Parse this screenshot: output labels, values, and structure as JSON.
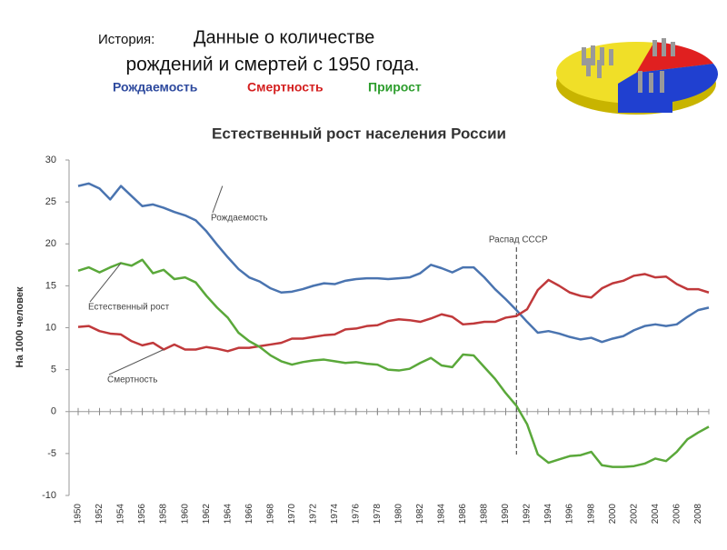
{
  "header": {
    "prefix": "История:",
    "title_line1": "Данные о количестве",
    "title_line2": "рождений и смертей с 1950 года.",
    "legend": [
      {
        "text": "Рождаемость",
        "color": "#2e4a9e"
      },
      {
        "text": "Смертность",
        "color": "#d42020"
      },
      {
        "text": "Прирост",
        "color": "#2e9e2e"
      }
    ]
  },
  "chart_data": {
    "type": "line",
    "title": "Естественный рост населения России",
    "ylabel": "На 1000 человек",
    "x": [
      1950,
      1951,
      1952,
      1953,
      1954,
      1955,
      1956,
      1957,
      1958,
      1959,
      1960,
      1961,
      1962,
      1963,
      1964,
      1965,
      1966,
      1967,
      1968,
      1969,
      1970,
      1971,
      1972,
      1973,
      1974,
      1975,
      1976,
      1977,
      1978,
      1979,
      1980,
      1981,
      1982,
      1983,
      1984,
      1985,
      1986,
      1987,
      1988,
      1989,
      1990,
      1991,
      1992,
      1993,
      1994,
      1995,
      1996,
      1997,
      1998,
      1999,
      2000,
      2001,
      2002,
      2003,
      2004,
      2005,
      2006,
      2007,
      2008,
      2009
    ],
    "series": [
      {
        "name": "Рождаемость",
        "color": "#4a74b0",
        "values": [
          26.9,
          27.2,
          26.6,
          25.3,
          26.9,
          25.7,
          24.5,
          24.7,
          24.3,
          23.8,
          23.4,
          22.8,
          21.5,
          19.9,
          18.4,
          17.0,
          16.0,
          15.5,
          14.7,
          14.2,
          14.3,
          14.6,
          15.0,
          15.3,
          15.2,
          15.6,
          15.8,
          15.9,
          15.9,
          15.8,
          15.9,
          16.0,
          16.5,
          17.5,
          17.1,
          16.6,
          17.2,
          17.2,
          16.0,
          14.6,
          13.4,
          12.1,
          10.7,
          9.4,
          9.6,
          9.3,
          8.9,
          8.6,
          8.8,
          8.3,
          8.7,
          9.0,
          9.7,
          10.2,
          10.4,
          10.2,
          10.4,
          11.3,
          12.1,
          12.4
        ]
      },
      {
        "name": "Смертность",
        "color": "#c0393b",
        "values": [
          10.1,
          10.2,
          9.6,
          9.3,
          9.2,
          8.4,
          7.9,
          8.2,
          7.4,
          8.0,
          7.4,
          7.4,
          7.7,
          7.5,
          7.2,
          7.6,
          7.6,
          7.8,
          8.0,
          8.2,
          8.7,
          8.7,
          8.9,
          9.1,
          9.2,
          9.8,
          9.9,
          10.2,
          10.3,
          10.8,
          11.0,
          10.9,
          10.7,
          11.1,
          11.6,
          11.3,
          10.4,
          10.5,
          10.7,
          10.7,
          11.2,
          11.4,
          12.2,
          14.5,
          15.7,
          15.0,
          14.2,
          13.8,
          13.6,
          14.7,
          15.3,
          15.6,
          16.2,
          16.4,
          16.0,
          16.1,
          15.2,
          14.6,
          14.6,
          14.2
        ]
      },
      {
        "name": "Естественный рост",
        "color": "#5aa83a",
        "values": [
          16.8,
          17.2,
          16.6,
          17.2,
          17.7,
          17.4,
          18.1,
          16.5,
          16.9,
          15.8,
          16.0,
          15.4,
          13.8,
          12.4,
          11.2,
          9.4,
          8.4,
          7.7,
          6.7,
          6.0,
          5.6,
          5.9,
          6.1,
          6.2,
          6.0,
          5.8,
          5.9,
          5.7,
          5.6,
          5.0,
          4.9,
          5.1,
          5.8,
          6.4,
          5.5,
          5.3,
          6.8,
          6.7,
          5.3,
          3.9,
          2.2,
          0.7,
          -1.5,
          -5.1,
          -6.1,
          -5.7,
          -5.3,
          -5.2,
          -4.8,
          -6.4,
          -6.6,
          -6.6,
          -6.5,
          -6.2,
          -5.6,
          -5.9,
          -4.8,
          -3.3,
          -2.5,
          -1.8
        ]
      }
    ],
    "annotations": [
      {
        "text": "Распад СССР",
        "x": 1991
      }
    ],
    "xlim": [
      1950,
      2009
    ],
    "xticks": [
      1950,
      1952,
      1954,
      1956,
      1958,
      1960,
      1962,
      1964,
      1966,
      1968,
      1970,
      1972,
      1974,
      1976,
      1978,
      1980,
      1982,
      1984,
      1986,
      1988,
      1990,
      1992,
      1994,
      1996,
      1998,
      2000,
      2002,
      2004,
      2006,
      2008
    ],
    "ylim": [
      -10,
      30
    ],
    "yticks": [
      -10,
      -5,
      0,
      5,
      10,
      15,
      20,
      25,
      30
    ]
  }
}
